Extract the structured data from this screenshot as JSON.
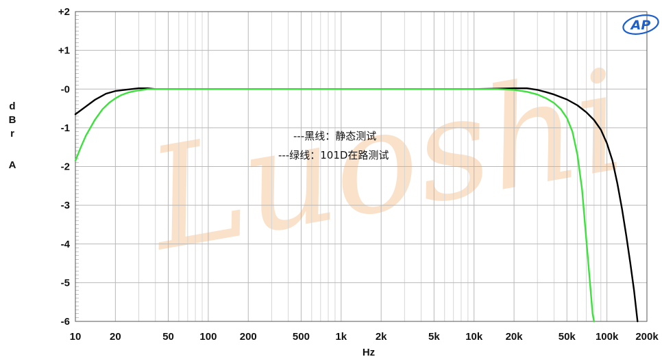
{
  "chart_data": {
    "type": "line",
    "xscale": "log",
    "xlim": [
      10,
      200000
    ],
    "ylim": [
      -6,
      2
    ],
    "xlabel": "Hz",
    "ylabel": [
      "d",
      "B",
      "r",
      "A"
    ],
    "xticks": [
      {
        "value": 10,
        "label": "10"
      },
      {
        "value": 20,
        "label": "20"
      },
      {
        "value": 50,
        "label": "50"
      },
      {
        "value": 100,
        "label": "100"
      },
      {
        "value": 200,
        "label": "200"
      },
      {
        "value": 500,
        "label": "500"
      },
      {
        "value": 1000,
        "label": "1k"
      },
      {
        "value": 2000,
        "label": "2k"
      },
      {
        "value": 5000,
        "label": "5k"
      },
      {
        "value": 10000,
        "label": "10k"
      },
      {
        "value": 20000,
        "label": "20k"
      },
      {
        "value": 50000,
        "label": "50k"
      },
      {
        "value": 100000,
        "label": "100k"
      },
      {
        "value": 200000,
        "label": "200k"
      }
    ],
    "yticks": [
      {
        "value": 2,
        "label": "+2"
      },
      {
        "value": 1,
        "label": "+1"
      },
      {
        "value": 0,
        "label": "-0"
      },
      {
        "value": -1,
        "label": "-1"
      },
      {
        "value": -2,
        "label": "-2"
      },
      {
        "value": -3,
        "label": "-3"
      },
      {
        "value": -4,
        "label": "-4"
      },
      {
        "value": -5,
        "label": "-5"
      },
      {
        "value": -6,
        "label": "-6"
      }
    ],
    "grid": true,
    "annotations": [
      "---黑线：静态测试",
      "---绿线：101D在路测试"
    ],
    "series": [
      {
        "color": "#000000",
        "points": [
          [
            10,
            -0.65
          ],
          [
            12,
            -0.45
          ],
          [
            14,
            -0.28
          ],
          [
            17,
            -0.12
          ],
          [
            20,
            -0.05
          ],
          [
            25,
            -0.01
          ],
          [
            30,
            0.02
          ],
          [
            35,
            0.02
          ],
          [
            40,
            0.0
          ],
          [
            100,
            0.0
          ],
          [
            1000,
            0.0
          ],
          [
            10000,
            0.0
          ],
          [
            20000,
            0.02
          ],
          [
            25000,
            0.02
          ],
          [
            30000,
            -0.02
          ],
          [
            35000,
            -0.08
          ],
          [
            40000,
            -0.14
          ],
          [
            50000,
            -0.27
          ],
          [
            60000,
            -0.42
          ],
          [
            70000,
            -0.6
          ],
          [
            80000,
            -0.8
          ],
          [
            90000,
            -1.05
          ],
          [
            100000,
            -1.4
          ],
          [
            110000,
            -1.85
          ],
          [
            120000,
            -2.45
          ],
          [
            130000,
            -3.1
          ],
          [
            140000,
            -3.8
          ],
          [
            150000,
            -4.5
          ],
          [
            160000,
            -5.2
          ],
          [
            170000,
            -6.0
          ]
        ]
      },
      {
        "color": "#3ee03e",
        "points": [
          [
            10,
            -1.85
          ],
          [
            11,
            -1.5
          ],
          [
            12,
            -1.2
          ],
          [
            14,
            -0.8
          ],
          [
            16,
            -0.52
          ],
          [
            18,
            -0.35
          ],
          [
            20,
            -0.24
          ],
          [
            22,
            -0.16
          ],
          [
            25,
            -0.09
          ],
          [
            28,
            -0.05
          ],
          [
            32,
            -0.02
          ],
          [
            35,
            0.0
          ],
          [
            100,
            0.0
          ],
          [
            1000,
            0.0
          ],
          [
            10000,
            0.0
          ],
          [
            15000,
            0.0
          ],
          [
            20000,
            -0.02
          ],
          [
            25000,
            -0.07
          ],
          [
            30000,
            -0.14
          ],
          [
            35000,
            -0.24
          ],
          [
            40000,
            -0.36
          ],
          [
            45000,
            -0.52
          ],
          [
            50000,
            -0.75
          ],
          [
            55000,
            -1.1
          ],
          [
            60000,
            -1.7
          ],
          [
            65000,
            -2.6
          ],
          [
            70000,
            -3.9
          ],
          [
            75000,
            -5.1
          ],
          [
            78000,
            -5.8
          ],
          [
            80000,
            -6.0
          ]
        ]
      }
    ]
  },
  "logo": {
    "text": "AP",
    "color": "#1f5fc8"
  },
  "watermark": {
    "text": "Luoshi",
    "color": "#f6c9a0"
  }
}
